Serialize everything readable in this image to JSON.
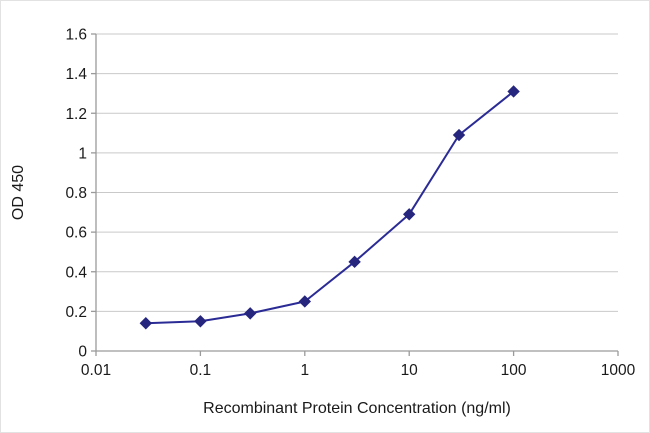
{
  "figure": {
    "kind": "elisa-binding-curve"
  },
  "chart_data": {
    "type": "line",
    "title": "",
    "xlabel": "Recombinant Protein Concentration (ng/ml)",
    "ylabel": "OD 450",
    "x_scale": "log10",
    "xlim": [
      0.01,
      1000
    ],
    "ylim": [
      0,
      1.6
    ],
    "x_ticks": [
      0.01,
      0.1,
      1,
      10,
      100,
      1000
    ],
    "x_tick_labels": [
      "0.01",
      "0.1",
      "1",
      "10",
      "100",
      "1000"
    ],
    "y_ticks": [
      0,
      0.2,
      0.4,
      0.6,
      0.8,
      1,
      1.2,
      1.4,
      1.6
    ],
    "y_tick_labels": [
      "0",
      "0.2",
      "0.4",
      "0.6",
      "0.8",
      "1",
      "1.2",
      "1.4",
      "1.6"
    ],
    "grid": "horizontal",
    "legend": "none",
    "colors": {
      "line": "#2b2b96",
      "marker": "#26267f",
      "gridline": "#c9c9c9",
      "axis": "#9a9a9a",
      "text": "#1a1a1a"
    },
    "series": [
      {
        "name": "OD 450",
        "marker": "diamond",
        "x": [
          0.03,
          0.1,
          0.3,
          1,
          3,
          10,
          30,
          100
        ],
        "y": [
          0.14,
          0.15,
          0.19,
          0.25,
          0.45,
          0.69,
          1.09,
          1.31
        ]
      }
    ]
  }
}
